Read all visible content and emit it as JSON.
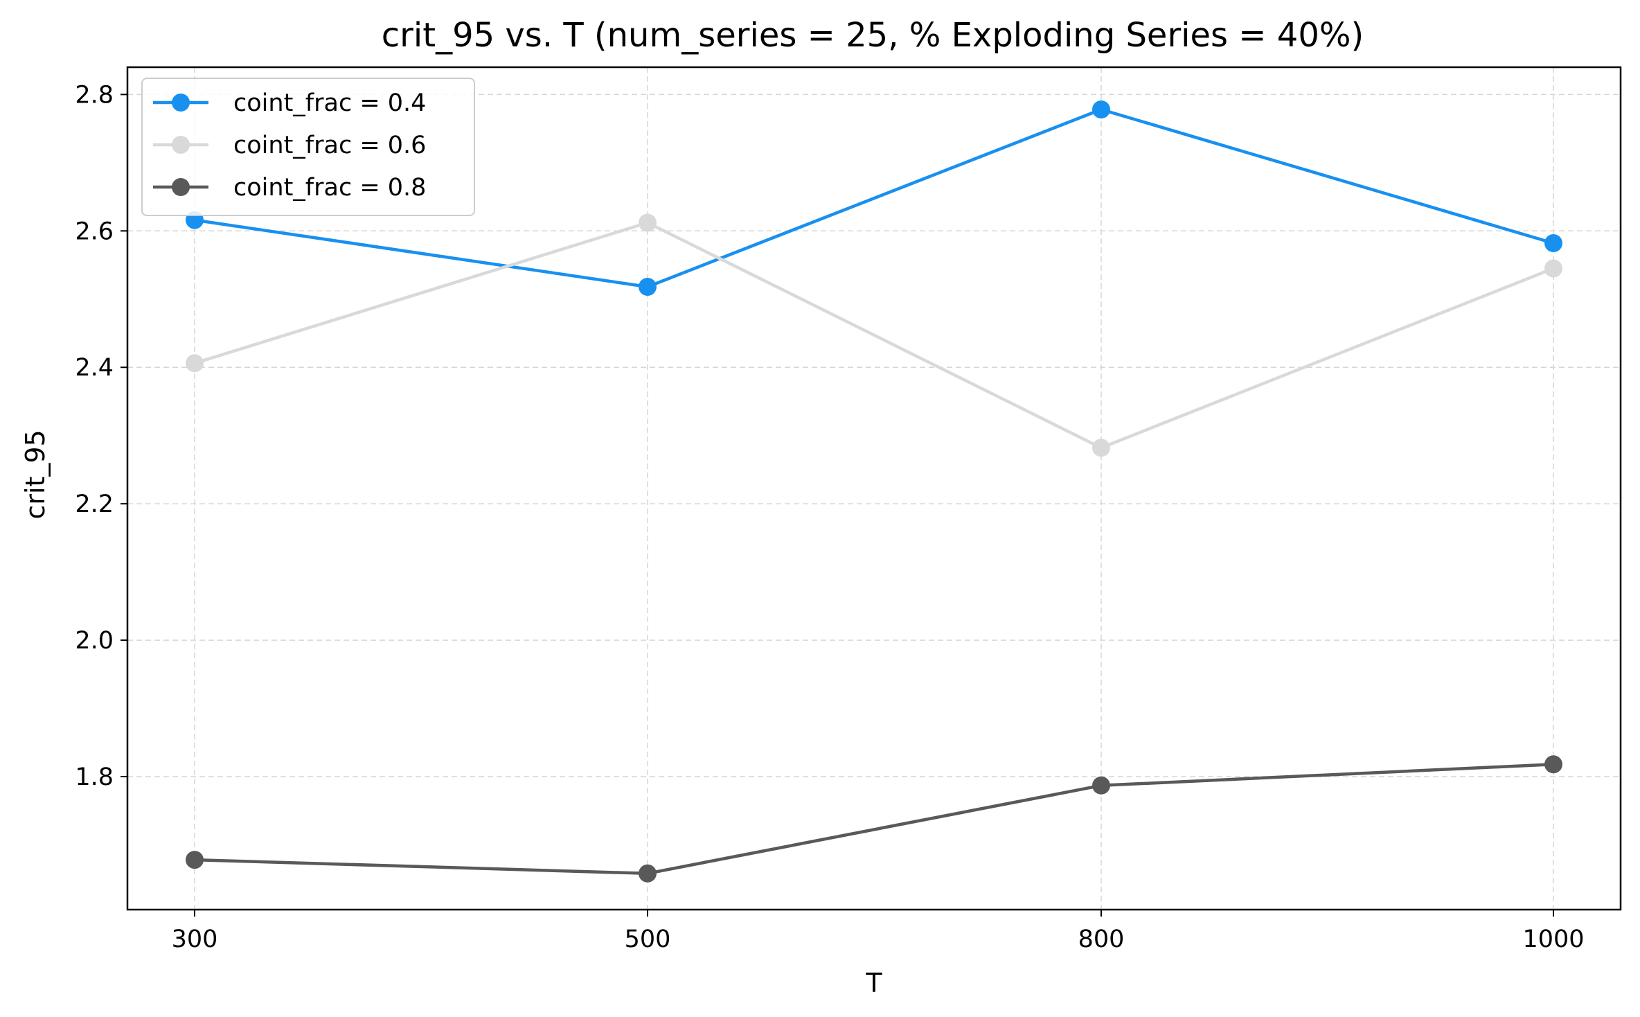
{
  "chart_data": {
    "type": "line",
    "title": "crit_95 vs. T  (num_series = 25, % Exploding Series = 40%)",
    "xlabel": "T",
    "ylabel": "crit_95",
    "categories": [
      "300",
      "500",
      "800",
      "1000"
    ],
    "ylim": [
      1.605,
      2.84
    ],
    "yticks": [
      "1.8",
      "2.0",
      "2.2",
      "2.4",
      "2.6",
      "2.8"
    ],
    "grid": true,
    "legend_position": "top-left",
    "series": [
      {
        "name": "coint_frac = 0.4",
        "color": "#1890f0",
        "values": [
          2.616,
          2.518,
          2.778,
          2.582
        ]
      },
      {
        "name": "coint_frac = 0.6",
        "color": "#d9d9d9",
        "values": [
          2.406,
          2.612,
          2.282,
          2.545
        ]
      },
      {
        "name": "coint_frac = 0.8",
        "color": "#595959",
        "values": [
          1.678,
          1.658,
          1.787,
          1.818
        ]
      }
    ]
  }
}
